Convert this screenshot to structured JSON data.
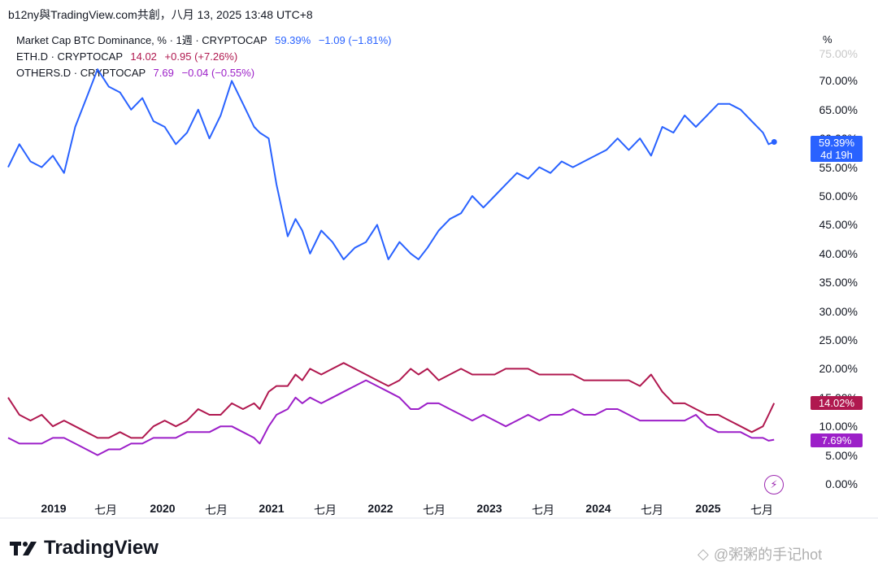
{
  "header": {
    "title": "b12ny與TradingView.com共創，八月 13, 2025 13:48 UTC+8"
  },
  "legend": [
    {
      "name": "Market Cap BTC Dominance, % · 1週 · CRYPTOCAP",
      "last": "59.39%",
      "change": "−1.09",
      "change_pct": "(−1.81%)",
      "color": "#2962ff"
    },
    {
      "name": "ETH.D · CRYPTOCAP",
      "last": "14.02",
      "change": "+0.95",
      "change_pct": "(+7.26%)",
      "color": "#b0184f"
    },
    {
      "name": "OTHERS.D · CRYPTOCAP",
      "last": "7.69",
      "change": "−0.04",
      "change_pct": "(−0.55%)",
      "color": "#9c1fc8"
    }
  ],
  "axis": {
    "unit": "%",
    "y_ticks": [
      "0.00%",
      "5.00%",
      "10.00%",
      "15.00%",
      "20.00%",
      "25.00%",
      "30.00%",
      "35.00%",
      "40.00%",
      "45.00%",
      "50.00%",
      "55.00%",
      "60.00%",
      "65.00%",
      "70.00%",
      "75.00%"
    ],
    "x_ticks": [
      {
        "label": "2019",
        "year": true
      },
      {
        "label": "七月",
        "year": false
      },
      {
        "label": "2020",
        "year": true
      },
      {
        "label": "七月",
        "year": false
      },
      {
        "label": "2021",
        "year": true
      },
      {
        "label": "七月",
        "year": false
      },
      {
        "label": "2022",
        "year": true
      },
      {
        "label": "七月",
        "year": false
      },
      {
        "label": "2023",
        "year": true
      },
      {
        "label": "七月",
        "year": false
      },
      {
        "label": "2024",
        "year": true
      },
      {
        "label": "七月",
        "year": false
      },
      {
        "label": "2025",
        "year": true
      },
      {
        "label": "七月",
        "year": false
      }
    ]
  },
  "badges": {
    "btc": {
      "value": "59.39%",
      "countdown": "4d 19h",
      "color": "#2962ff"
    },
    "eth": {
      "value": "14.02%",
      "color": "#b0184f"
    },
    "others": {
      "value": "7.69%",
      "color": "#9c1fc8"
    }
  },
  "footer": {
    "logo_text": "TradingView",
    "watermark": "@粥粥的手记hot"
  },
  "chart_data": {
    "type": "line",
    "ylim": [
      0,
      75
    ],
    "xlim": [
      2018.75,
      2025.62
    ],
    "series": [
      {
        "name": "Market Cap BTC Dominance, % · 1週 · CRYPTOCAP",
        "color": "#2962ff",
        "x": [
          2018.75,
          2018.85,
          2018.95,
          2019.05,
          2019.15,
          2019.25,
          2019.35,
          2019.45,
          2019.55,
          2019.65,
          2019.75,
          2019.85,
          2019.95,
          2020.05,
          2020.15,
          2020.25,
          2020.35,
          2020.45,
          2020.55,
          2020.65,
          2020.75,
          2020.85,
          2020.95,
          2021.0,
          2021.08,
          2021.15,
          2021.25,
          2021.32,
          2021.38,
          2021.45,
          2021.55,
          2021.65,
          2021.75,
          2021.85,
          2021.95,
          2022.05,
          2022.15,
          2022.25,
          2022.35,
          2022.42,
          2022.5,
          2022.6,
          2022.7,
          2022.8,
          2022.9,
          2023.0,
          2023.1,
          2023.2,
          2023.3,
          2023.4,
          2023.5,
          2023.6,
          2023.7,
          2023.8,
          2023.9,
          2024.0,
          2024.1,
          2024.2,
          2024.3,
          2024.4,
          2024.5,
          2024.6,
          2024.7,
          2024.8,
          2024.9,
          2025.0,
          2025.1,
          2025.2,
          2025.3,
          2025.4,
          2025.5,
          2025.55,
          2025.6
        ],
        "values": [
          55,
          59,
          56,
          55,
          57,
          54,
          62,
          67,
          72,
          69,
          68,
          65,
          67,
          63,
          62,
          59,
          61,
          65,
          60,
          64,
          70,
          66,
          62,
          61,
          60,
          52,
          43,
          46,
          44,
          40,
          44,
          42,
          39,
          41,
          42,
          45,
          39,
          42,
          40,
          39,
          41,
          44,
          46,
          47,
          50,
          48,
          50,
          52,
          54,
          53,
          55,
          54,
          56,
          55,
          56,
          57,
          58,
          60,
          58,
          60,
          57,
          62,
          61,
          64,
          62,
          64,
          66,
          66,
          65,
          63,
          61,
          59,
          59.39
        ]
      },
      {
        "name": "ETH.D · CRYPTOCAP",
        "color": "#b0184f",
        "x": [
          2018.75,
          2018.85,
          2018.95,
          2019.05,
          2019.15,
          2019.25,
          2019.35,
          2019.45,
          2019.55,
          2019.65,
          2019.75,
          2019.85,
          2019.95,
          2020.05,
          2020.15,
          2020.25,
          2020.35,
          2020.45,
          2020.55,
          2020.65,
          2020.75,
          2020.85,
          2020.95,
          2021.0,
          2021.08,
          2021.15,
          2021.25,
          2021.32,
          2021.38,
          2021.45,
          2021.55,
          2021.65,
          2021.75,
          2021.85,
          2021.95,
          2022.05,
          2022.15,
          2022.25,
          2022.35,
          2022.42,
          2022.5,
          2022.6,
          2022.7,
          2022.8,
          2022.9,
          2023.0,
          2023.1,
          2023.2,
          2023.3,
          2023.4,
          2023.5,
          2023.6,
          2023.7,
          2023.8,
          2023.9,
          2024.0,
          2024.1,
          2024.2,
          2024.3,
          2024.4,
          2024.5,
          2024.6,
          2024.7,
          2024.8,
          2024.9,
          2025.0,
          2025.1,
          2025.2,
          2025.3,
          2025.4,
          2025.5,
          2025.55,
          2025.6
        ],
        "values": [
          15,
          12,
          11,
          12,
          10,
          11,
          10,
          9,
          8,
          8,
          9,
          8,
          8,
          10,
          11,
          10,
          11,
          13,
          12,
          12,
          14,
          13,
          14,
          13,
          16,
          17,
          17,
          19,
          18,
          20,
          19,
          20,
          21,
          20,
          19,
          18,
          17,
          18,
          20,
          19,
          20,
          18,
          19,
          20,
          19,
          19,
          19,
          20,
          20,
          20,
          19,
          19,
          19,
          19,
          18,
          18,
          18,
          18,
          18,
          17,
          19,
          16,
          14,
          14,
          13,
          12,
          12,
          11,
          10,
          9,
          10,
          12,
          14.02
        ]
      },
      {
        "name": "OTHERS.D · CRYPTOCAP",
        "color": "#9c1fc8",
        "x": [
          2018.75,
          2018.85,
          2018.95,
          2019.05,
          2019.15,
          2019.25,
          2019.35,
          2019.45,
          2019.55,
          2019.65,
          2019.75,
          2019.85,
          2019.95,
          2020.05,
          2020.15,
          2020.25,
          2020.35,
          2020.45,
          2020.55,
          2020.65,
          2020.75,
          2020.85,
          2020.95,
          2021.0,
          2021.08,
          2021.15,
          2021.25,
          2021.32,
          2021.38,
          2021.45,
          2021.55,
          2021.65,
          2021.75,
          2021.85,
          2021.95,
          2022.05,
          2022.15,
          2022.25,
          2022.35,
          2022.42,
          2022.5,
          2022.6,
          2022.7,
          2022.8,
          2022.9,
          2023.0,
          2023.1,
          2023.2,
          2023.3,
          2023.4,
          2023.5,
          2023.6,
          2023.7,
          2023.8,
          2023.9,
          2024.0,
          2024.1,
          2024.2,
          2024.3,
          2024.4,
          2024.5,
          2024.6,
          2024.7,
          2024.8,
          2024.9,
          2025.0,
          2025.1,
          2025.2,
          2025.3,
          2025.4,
          2025.5,
          2025.55,
          2025.6
        ],
        "values": [
          8,
          7,
          7,
          7,
          8,
          8,
          7,
          6,
          5,
          6,
          6,
          7,
          7,
          8,
          8,
          8,
          9,
          9,
          9,
          10,
          10,
          9,
          8,
          7,
          10,
          12,
          13,
          15,
          14,
          15,
          14,
          15,
          16,
          17,
          18,
          17,
          16,
          15,
          13,
          13,
          14,
          14,
          13,
          12,
          11,
          12,
          11,
          10,
          11,
          12,
          11,
          12,
          12,
          13,
          12,
          12,
          13,
          13,
          12,
          11,
          11,
          11,
          11,
          11,
          12,
          10,
          9,
          9,
          9,
          8,
          8,
          7.5,
          7.69
        ]
      }
    ]
  }
}
